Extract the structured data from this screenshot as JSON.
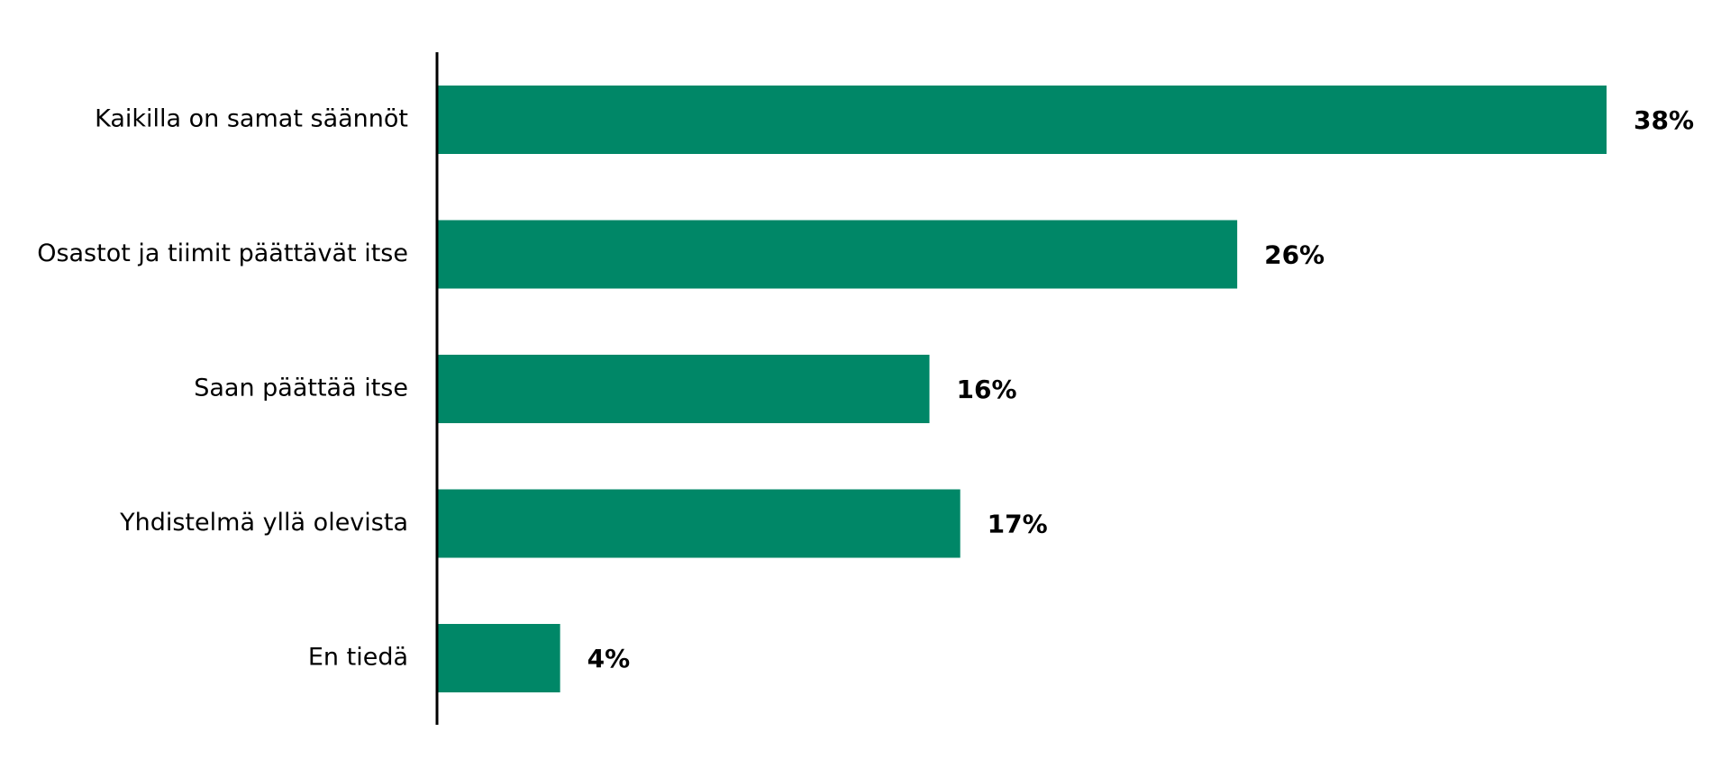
{
  "chart_data": {
    "type": "bar",
    "orientation": "horizontal",
    "categories": [
      "Kaikilla on samat säännöt",
      "Osastot ja tiimit päättävät itse",
      "Saan päättää itse",
      "Yhdistelmä yllä olevista",
      "En tiedä"
    ],
    "values": [
      38,
      26,
      16,
      17,
      4
    ],
    "value_labels": [
      "38%",
      "26%",
      "16%",
      "17%",
      "4%"
    ],
    "color": "#008767"
  }
}
